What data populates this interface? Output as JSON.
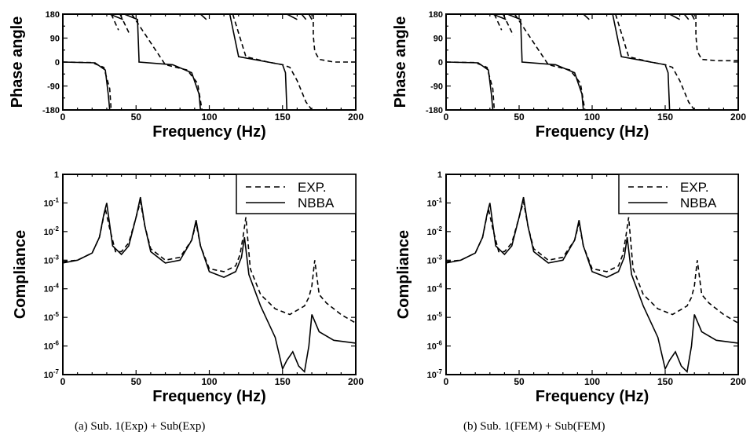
{
  "captions": {
    "a": "(a)  Sub. 1(Exp) + Sub(Exp)",
    "b": "(b)  Sub. 1(FEM) + Sub(FEM)"
  },
  "chart_data": [
    {
      "id": "a-phase",
      "type": "line",
      "title": "",
      "xlabel": "Frequency (Hz)",
      "ylabel": "Phase angle",
      "xlim": [
        0,
        200
      ],
      "ylim": [
        -180,
        180
      ],
      "x_ticks": [
        0,
        50,
        100,
        150,
        200
      ],
      "y_ticks": [
        180,
        90,
        0,
        -90,
        -180
      ],
      "grid": false,
      "series": [
        {
          "style": "dashed",
          "x": [
            0,
            20,
            28,
            32,
            33,
            33.01,
            38,
            39,
            39.01,
            46,
            47,
            47.01,
            70,
            85,
            92,
            95,
            96,
            96.01,
            97,
            97.01,
            115,
            116,
            116.01,
            125,
            140,
            150,
            155,
            160,
            166,
            170,
            171,
            171.01,
            172,
            175,
            185,
            200
          ],
          "y": [
            0,
            -2,
            -20,
            -100,
            -180,
            180,
            120,
            -180,
            180,
            100,
            -180,
            180,
            -10,
            -30,
            -80,
            -180,
            -180,
            180,
            -180,
            180,
            -180,
            -180,
            180,
            20,
            0,
            -10,
            -20,
            -70,
            -150,
            -180,
            180,
            100,
            40,
            10,
            0,
            0
          ]
        },
        {
          "style": "solid",
          "x": [
            0,
            22,
            29,
            31,
            32,
            32.01,
            41,
            42,
            42.01,
            51,
            52,
            52.01,
            75,
            88,
            93,
            94,
            94.01,
            98,
            99,
            99.01,
            113,
            114,
            114.01,
            120,
            140,
            150,
            152,
            153,
            153.01,
            160,
            163,
            163.01,
            166,
            168,
            168.01,
            170,
            172
          ],
          "y": [
            0,
            -3,
            -30,
            -120,
            -180,
            180,
            160,
            -180,
            180,
            160,
            10,
            0,
            -10,
            -40,
            -120,
            -180,
            180,
            160,
            -180,
            180,
            180,
            -180,
            180,
            20,
            0,
            -10,
            -40,
            -180,
            180,
            160,
            -180,
            180,
            160,
            -180,
            180,
            160,
            -180
          ]
        }
      ]
    },
    {
      "id": "a-compliance",
      "type": "line",
      "title": "",
      "xlabel": "Frequency (Hz)",
      "ylabel": "Compliance",
      "yscale": "log",
      "xlim": [
        0,
        200
      ],
      "ylim": [
        1e-07,
        1
      ],
      "x_ticks": [
        0,
        50,
        100,
        150,
        200
      ],
      "y_ticks": [
        "1",
        "10⁻¹",
        "10⁻²",
        "10⁻³",
        "10⁻⁴",
        "10⁻⁵",
        "10⁻⁶",
        "10⁻⁷"
      ],
      "legend": {
        "position": "top-right",
        "entries": [
          {
            "label": "EXP.",
            "style": "dashed"
          },
          {
            "label": "NBBA",
            "style": "solid"
          }
        ]
      },
      "grid": false,
      "series": [
        {
          "name": "EXP.",
          "style": "dashed",
          "x": [
            0,
            10,
            20,
            25,
            29,
            32,
            36,
            40,
            45,
            50,
            53,
            56,
            60,
            70,
            80,
            88,
            91,
            94,
            100,
            110,
            118,
            121,
            123,
            125,
            128,
            135,
            145,
            155,
            165,
            168,
            170,
            172,
            175,
            180,
            190,
            200
          ],
          "logy": [
            -3.05,
            -3.0,
            -2.75,
            -2.2,
            -1.2,
            -1.9,
            -2.7,
            -2.7,
            -2.4,
            -1.5,
            -0.95,
            -1.8,
            -2.6,
            -3.0,
            -2.9,
            -2.3,
            -1.7,
            -2.5,
            -3.3,
            -3.4,
            -3.2,
            -2.8,
            -2.2,
            -1.5,
            -3.3,
            -4.2,
            -4.7,
            -4.9,
            -4.6,
            -4.3,
            -3.9,
            -3.0,
            -4.2,
            -4.5,
            -4.9,
            -5.2
          ]
        },
        {
          "name": "NBBA",
          "style": "solid",
          "x": [
            0,
            10,
            20,
            25,
            28,
            30,
            34,
            40,
            45,
            50,
            53,
            56,
            60,
            70,
            80,
            88,
            91,
            94,
            100,
            110,
            118,
            122,
            124,
            127,
            135,
            145,
            150,
            153,
            157,
            161,
            165,
            168,
            170,
            175,
            185,
            200
          ],
          "logy": [
            -3.1,
            -3.0,
            -2.75,
            -2.2,
            -1.4,
            -1.0,
            -2.5,
            -2.8,
            -2.5,
            -1.5,
            -0.8,
            -1.8,
            -2.7,
            -3.1,
            -3.0,
            -2.3,
            -1.6,
            -2.5,
            -3.4,
            -3.6,
            -3.4,
            -2.9,
            -2.2,
            -3.5,
            -4.6,
            -5.7,
            -6.8,
            -6.5,
            -6.2,
            -6.7,
            -6.9,
            -6.0,
            -4.9,
            -5.5,
            -5.8,
            -5.9
          ]
        }
      ]
    },
    {
      "id": "b-phase",
      "type": "line",
      "title": "",
      "xlabel": "Frequency (Hz)",
      "ylabel": "Phase angle",
      "xlim": [
        0,
        200
      ],
      "ylim": [
        -180,
        180
      ],
      "x_ticks": [
        0,
        50,
        100,
        150,
        200
      ],
      "y_ticks": [
        180,
        90,
        0,
        -90,
        -180
      ],
      "grid": false,
      "series": [
        {
          "style": "dashed",
          "x": [
            0,
            20,
            28,
            32,
            33,
            33.01,
            38,
            39,
            39.01,
            46,
            47,
            47.01,
            70,
            85,
            92,
            95,
            96,
            96.01,
            97,
            97.01,
            115,
            116,
            116.01,
            125,
            140,
            150,
            155,
            160,
            166,
            170,
            171,
            171.01,
            172,
            175,
            185,
            200
          ],
          "y": [
            0,
            -2,
            -20,
            -100,
            -180,
            180,
            120,
            -180,
            180,
            100,
            -180,
            180,
            -10,
            -30,
            -80,
            -180,
            -180,
            180,
            -180,
            180,
            -180,
            -180,
            180,
            20,
            0,
            -10,
            -20,
            -70,
            -150,
            -180,
            180,
            100,
            40,
            10,
            5,
            5
          ]
        },
        {
          "style": "solid",
          "x": [
            0,
            22,
            29,
            31,
            32,
            32.01,
            41,
            42,
            42.01,
            51,
            52,
            52.01,
            75,
            88,
            93,
            94,
            94.01,
            98,
            99,
            99.01,
            113,
            114,
            114.01,
            120,
            140,
            150,
            152,
            153,
            153.01,
            160,
            163,
            163.01,
            166,
            168,
            168.01,
            170,
            172
          ],
          "y": [
            0,
            -3,
            -30,
            -120,
            -180,
            180,
            160,
            -180,
            180,
            160,
            10,
            0,
            -10,
            -40,
            -120,
            -180,
            180,
            160,
            -180,
            180,
            180,
            -180,
            180,
            20,
            0,
            -10,
            -40,
            -180,
            180,
            160,
            -180,
            180,
            160,
            -180,
            180,
            160,
            -180
          ]
        }
      ]
    },
    {
      "id": "b-compliance",
      "type": "line",
      "title": "",
      "xlabel": "Frequency (Hz)",
      "ylabel": "Compliance",
      "yscale": "log",
      "xlim": [
        0,
        200
      ],
      "ylim": [
        1e-07,
        1
      ],
      "x_ticks": [
        0,
        50,
        100,
        150,
        200
      ],
      "y_ticks": [
        "1",
        "10⁻¹",
        "10⁻²",
        "10⁻³",
        "10⁻⁴",
        "10⁻⁵",
        "10⁻⁶",
        "10⁻⁷"
      ],
      "legend": {
        "position": "top-right",
        "entries": [
          {
            "label": "EXP.",
            "style": "dashed"
          },
          {
            "label": "NBBA",
            "style": "solid"
          }
        ]
      },
      "grid": false,
      "series": [
        {
          "name": "EXP.",
          "style": "dashed",
          "x": [
            0,
            10,
            20,
            25,
            29,
            32,
            36,
            40,
            45,
            50,
            53,
            56,
            60,
            70,
            80,
            88,
            91,
            94,
            100,
            110,
            118,
            121,
            123,
            125,
            128,
            135,
            145,
            155,
            165,
            168,
            170,
            172,
            175,
            180,
            190,
            200
          ],
          "logy": [
            -3.05,
            -3.0,
            -2.75,
            -2.2,
            -1.2,
            -1.9,
            -2.7,
            -2.7,
            -2.4,
            -1.5,
            -0.95,
            -1.8,
            -2.6,
            -3.0,
            -2.9,
            -2.3,
            -1.7,
            -2.5,
            -3.3,
            -3.4,
            -3.2,
            -2.8,
            -2.2,
            -1.5,
            -3.3,
            -4.2,
            -4.7,
            -4.9,
            -4.6,
            -4.3,
            -3.9,
            -3.0,
            -4.2,
            -4.5,
            -4.9,
            -5.2
          ]
        },
        {
          "name": "NBBA",
          "style": "solid",
          "x": [
            0,
            10,
            20,
            25,
            28,
            30,
            34,
            40,
            45,
            50,
            53,
            56,
            60,
            70,
            80,
            88,
            91,
            94,
            100,
            110,
            118,
            122,
            124,
            127,
            135,
            145,
            150,
            153,
            157,
            161,
            165,
            168,
            170,
            175,
            185,
            200
          ],
          "logy": [
            -3.1,
            -3.0,
            -2.75,
            -2.2,
            -1.4,
            -1.0,
            -2.5,
            -2.8,
            -2.5,
            -1.5,
            -0.8,
            -1.8,
            -2.7,
            -3.1,
            -3.0,
            -2.3,
            -1.6,
            -2.5,
            -3.4,
            -3.6,
            -3.4,
            -2.9,
            -2.2,
            -3.5,
            -4.6,
            -5.7,
            -6.8,
            -6.5,
            -6.2,
            -6.7,
            -6.9,
            -6.0,
            -4.9,
            -5.5,
            -5.8,
            -5.9
          ]
        }
      ]
    }
  ]
}
